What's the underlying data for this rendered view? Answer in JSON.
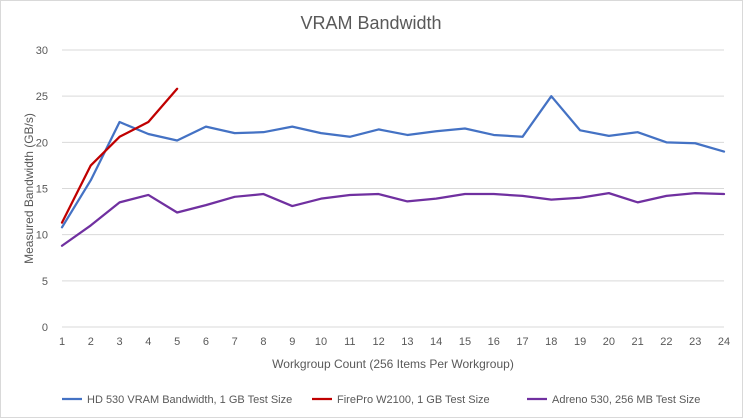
{
  "chart_data": {
    "type": "line",
    "title": "VRAM Bandwidth",
    "xlabel": "Workgroup Count (256 Items Per Workgroup)",
    "ylabel": "Measured Bandwidth (GB/s)",
    "x": [
      1,
      2,
      3,
      4,
      5,
      6,
      7,
      8,
      9,
      10,
      11,
      12,
      13,
      14,
      15,
      16,
      17,
      18,
      19,
      20,
      21,
      22,
      23,
      24
    ],
    "xticks": [
      "1",
      "2",
      "3",
      "4",
      "5",
      "6",
      "7",
      "8",
      "9",
      "10",
      "11",
      "12",
      "13",
      "14",
      "15",
      "16",
      "17",
      "18",
      "19",
      "20",
      "21",
      "22",
      "23",
      "24"
    ],
    "ylim": [
      0,
      30
    ],
    "yticks": [
      "0",
      "5",
      "10",
      "15",
      "20",
      "25",
      "30"
    ],
    "grid": true,
    "legend_position": "bottom",
    "series": [
      {
        "name": "HD 530 VRAM Bandwidth, 1 GB Test Size",
        "color": "#4472c4",
        "x": [
          1,
          2,
          3,
          4,
          5,
          6,
          7,
          8,
          9,
          10,
          11,
          12,
          13,
          14,
          15,
          16,
          17,
          18,
          19,
          20,
          21,
          22,
          23,
          24
        ],
        "values": [
          10.8,
          15.9,
          22.2,
          20.9,
          20.2,
          21.7,
          21.0,
          21.1,
          21.7,
          21.0,
          20.6,
          21.4,
          20.8,
          21.2,
          21.5,
          20.8,
          20.6,
          25.0,
          21.3,
          20.7,
          21.1,
          20.0,
          19.9,
          19.0
        ]
      },
      {
        "name": "FirePro W2100, 1 GB Test Size",
        "color": "#c00000",
        "x": [
          1,
          2,
          3,
          4,
          5
        ],
        "values": [
          11.3,
          17.5,
          20.6,
          22.2,
          25.8
        ]
      },
      {
        "name": "Adreno 530, 256 MB Test Size",
        "color": "#7030a0",
        "x": [
          1,
          2,
          3,
          4,
          5,
          6,
          7,
          8,
          9,
          10,
          11,
          12,
          13,
          14,
          15,
          16,
          17,
          18,
          19,
          20,
          21,
          22,
          23,
          24
        ],
        "values": [
          8.8,
          11.0,
          13.5,
          14.3,
          12.4,
          13.2,
          14.1,
          14.4,
          13.1,
          13.9,
          14.3,
          14.4,
          13.6,
          13.9,
          14.4,
          14.4,
          14.2,
          13.8,
          14.0,
          14.5,
          13.5,
          14.2,
          14.5,
          14.4
        ]
      }
    ]
  }
}
